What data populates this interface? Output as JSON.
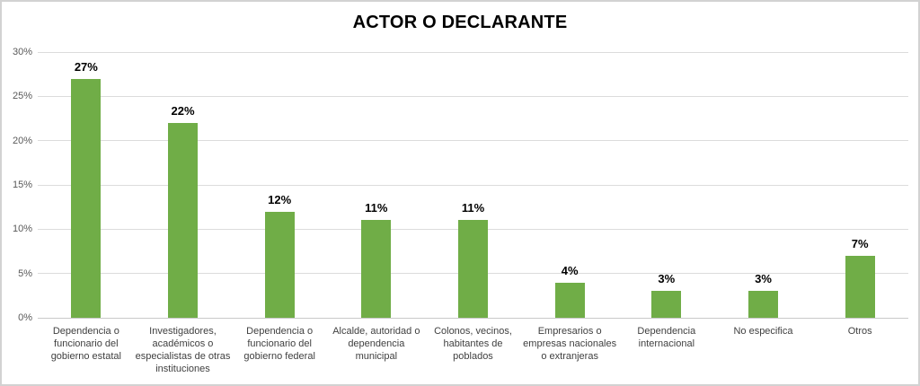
{
  "chart_data": {
    "type": "bar",
    "title": "ACTOR O DECLARANTE",
    "categories": [
      "Dependencia o\nfuncionario del\ngobierno estatal",
      "Investigadores,\nacadémicos o\nespecialistas de otras\ninstituciones",
      "Dependencia o\nfuncionario del\ngobierno federal",
      "Alcalde, autoridad o\ndependencia\nmunicipal",
      "Colonos, vecinos,\nhabitantes de\npoblados",
      "Empresarios o\nempresas nacionales\no extranjeras",
      "Dependencia\ninternacional",
      "No especifica",
      "Otros"
    ],
    "values": [
      27,
      22,
      12,
      11,
      11,
      4,
      3,
      3,
      7
    ],
    "data_labels": [
      "27%",
      "22%",
      "12%",
      "11%",
      "11%",
      "4%",
      "3%",
      "3%",
      "7%"
    ],
    "xlabel": "",
    "ylabel": "",
    "ylim": [
      0,
      30
    ],
    "ytick_values": [
      0,
      5,
      10,
      15,
      20,
      25,
      30
    ],
    "ytick_labels": [
      "0%",
      "5%",
      "10%",
      "15%",
      "20%",
      "25%",
      "30%"
    ],
    "grid": true,
    "legend": "none",
    "colors": {
      "bar": "#70AD47",
      "title": "#000000",
      "data_label": "#000000",
      "axis_tick_label": "#595959",
      "category_label": "#404040",
      "gridline": "#dcdcdc",
      "background": "#ffffff",
      "border": "#d2d2d2"
    }
  }
}
